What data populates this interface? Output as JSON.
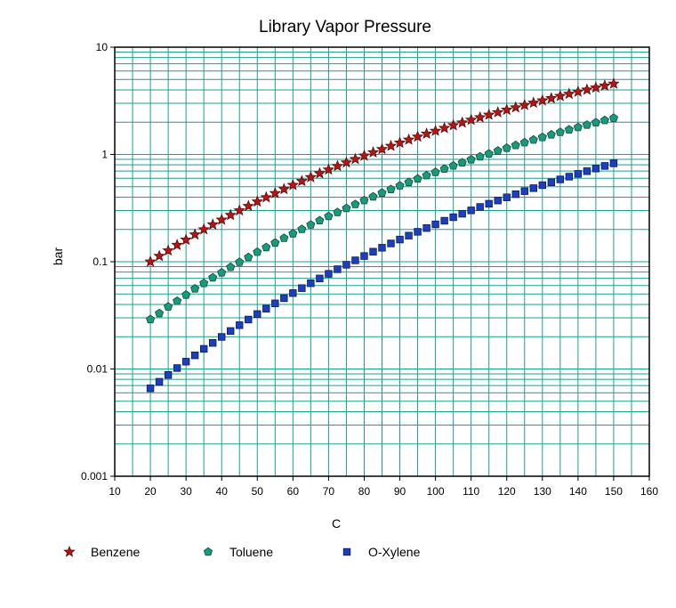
{
  "chart_data": {
    "type": "scatter",
    "title": "Library Vapor Pressure",
    "xlabel": "C",
    "ylabel": "bar",
    "xlim": [
      10,
      160
    ],
    "ylim": [
      0.001,
      10
    ],
    "yscale": "log",
    "grid": true,
    "legend_position": "bottom",
    "x_ticks": [
      "10",
      "20",
      "30",
      "40",
      "50",
      "60",
      "70",
      "80",
      "90",
      "100",
      "110",
      "120",
      "130",
      "140",
      "150",
      "160"
    ],
    "y_ticks": [
      "10",
      "1",
      "0.1",
      "0.01",
      "0.001"
    ],
    "colors": {
      "grid": "#1e9e8c",
      "frame": "#000000"
    },
    "series": [
      {
        "name": "Benzene",
        "marker": "star",
        "color": "#b01818",
        "stroke": "#5a0a0a",
        "x": [
          20,
          22.5,
          25,
          27.5,
          30,
          32.5,
          35,
          37.5,
          40,
          42.5,
          45,
          47.5,
          50,
          52.5,
          55,
          57.5,
          60,
          62.5,
          65,
          67.5,
          70,
          72.5,
          75,
          77.5,
          80,
          82.5,
          85,
          87.5,
          90,
          92.5,
          95,
          97.5,
          100,
          102.5,
          105,
          107.5,
          110,
          112.5,
          115,
          117.5,
          120,
          122.5,
          125,
          127.5,
          130,
          132.5,
          135,
          137.5,
          140,
          142.5,
          145,
          147.5,
          150
        ],
        "y": [
          0.1,
          0.113,
          0.127,
          0.143,
          0.16,
          0.179,
          0.2,
          0.222,
          0.246,
          0.272,
          0.3,
          0.33,
          0.363,
          0.398,
          0.435,
          0.475,
          0.518,
          0.564,
          0.613,
          0.665,
          0.721,
          0.779,
          0.84,
          0.905,
          0.973,
          1.045,
          1.12,
          1.2,
          1.284,
          1.371,
          1.462,
          1.558,
          1.657,
          1.761,
          1.868,
          1.98,
          2.096,
          2.216,
          2.341,
          2.47,
          2.604,
          2.742,
          2.884,
          3.031,
          3.183,
          3.339,
          3.5,
          3.666,
          3.836,
          4.01,
          4.19,
          4.374,
          4.562
        ]
      },
      {
        "name": "Toluene",
        "marker": "pentagon",
        "color": "#1a9a7a",
        "stroke": "#0b4a3a",
        "x": [
          20,
          22.5,
          25,
          27.5,
          30,
          32.5,
          35,
          37.5,
          40,
          42.5,
          45,
          47.5,
          50,
          52.5,
          55,
          57.5,
          60,
          62.5,
          65,
          67.5,
          70,
          72.5,
          75,
          77.5,
          80,
          82.5,
          85,
          87.5,
          90,
          92.5,
          95,
          97.5,
          100,
          102.5,
          105,
          107.5,
          110,
          112.5,
          115,
          117.5,
          120,
          122.5,
          125,
          127.5,
          130,
          132.5,
          135,
          137.5,
          140,
          142.5,
          145,
          147.5,
          150
        ],
        "y": [
          0.029,
          0.033,
          0.038,
          0.043,
          0.049,
          0.056,
          0.063,
          0.071,
          0.079,
          0.089,
          0.099,
          0.11,
          0.123,
          0.136,
          0.15,
          0.166,
          0.183,
          0.201,
          0.221,
          0.242,
          0.265,
          0.289,
          0.315,
          0.343,
          0.373,
          0.404,
          0.438,
          0.473,
          0.511,
          0.55,
          0.593,
          0.637,
          0.684,
          0.733,
          0.784,
          0.838,
          0.895,
          0.954,
          1.016,
          1.081,
          1.148,
          1.218,
          1.291,
          1.367,
          1.446,
          1.527,
          1.612,
          1.7,
          1.79,
          1.884,
          1.981,
          2.081,
          2.184
        ]
      },
      {
        "name": "O-Xylene",
        "marker": "square",
        "color": "#1c3fbf",
        "stroke": "#0a1a5a",
        "x": [
          20,
          22.5,
          25,
          27.5,
          30,
          32.5,
          35,
          37.5,
          40,
          42.5,
          45,
          47.5,
          50,
          52.5,
          55,
          57.5,
          60,
          62.5,
          65,
          67.5,
          70,
          72.5,
          75,
          77.5,
          80,
          82.5,
          85,
          87.5,
          90,
          92.5,
          95,
          97.5,
          100,
          102.5,
          105,
          107.5,
          110,
          112.5,
          115,
          117.5,
          120,
          122.5,
          125,
          127.5,
          130,
          132.5,
          135,
          137.5,
          140,
          142.5,
          145,
          147.5,
          150
        ],
        "y": [
          0.0066,
          0.0076,
          0.0088,
          0.0102,
          0.0117,
          0.0134,
          0.0154,
          0.0175,
          0.0199,
          0.0226,
          0.0256,
          0.0289,
          0.0325,
          0.0365,
          0.0409,
          0.0457,
          0.051,
          0.0567,
          0.063,
          0.0698,
          0.0771,
          0.0851,
          0.0937,
          0.103,
          0.113,
          0.124,
          0.135,
          0.148,
          0.161,
          0.175,
          0.19,
          0.206,
          0.223,
          0.241,
          0.26,
          0.28,
          0.301,
          0.324,
          0.347,
          0.372,
          0.398,
          0.426,
          0.455,
          0.485,
          0.517,
          0.55,
          0.585,
          0.621,
          0.659,
          0.698,
          0.739,
          0.782,
          0.826
        ]
      }
    ]
  }
}
